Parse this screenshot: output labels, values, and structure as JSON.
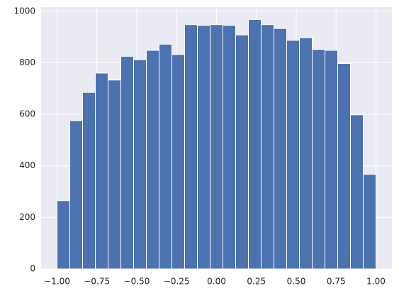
{
  "chart_data": {
    "type": "histogram",
    "bins": [
      -1,
      -0.92,
      -0.84,
      -0.76,
      -0.68,
      -0.6,
      -0.52,
      -0.44,
      -0.36,
      -0.28,
      -0.2,
      -0.12,
      -0.04,
      0.04,
      0.12,
      0.2,
      0.28,
      0.36,
      0.44,
      0.52,
      0.6,
      0.68,
      0.76,
      0.84,
      0.92,
      1
    ],
    "values": [
      265,
      575,
      685,
      760,
      733,
      825,
      812,
      848,
      872,
      832,
      948,
      945,
      948,
      945,
      908,
      968,
      948,
      933,
      887,
      897,
      852,
      848,
      797,
      598,
      367
    ],
    "color": "#4c72b0",
    "xlim": [
      -1.1,
      1.1
    ],
    "xticks": [
      {
        "value": -1,
        "label": "−1.00"
      },
      {
        "value": -0.75,
        "label": "−0.75"
      },
      {
        "value": -0.5,
        "label": "−0.50"
      },
      {
        "value": -0.25,
        "label": "−0.25"
      },
      {
        "value": 0,
        "label": "0.00"
      },
      {
        "value": 0.25,
        "label": "0.25"
      },
      {
        "value": 0.5,
        "label": "0.50"
      },
      {
        "value": 0.75,
        "label": "0.75"
      },
      {
        "value": 1,
        "label": "1.00"
      }
    ],
    "ylim": [
      0,
      1016
    ],
    "yticks": [
      0,
      200,
      400,
      600,
      800,
      1000
    ],
    "grid": true
  }
}
